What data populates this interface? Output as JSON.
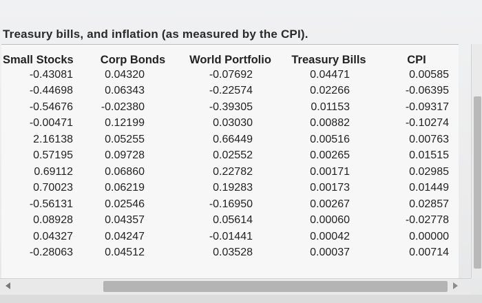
{
  "caption": "Treasury bills, and inflation (as measured by the CPI).",
  "table": {
    "headers": [
      "Small Stocks",
      "Corp Bonds",
      "World Portfolio",
      "Treasury Bills",
      "CPI"
    ],
    "rows": [
      [
        "-0.43081",
        "0.04320",
        "-0.07692",
        "0.04471",
        "0.00585"
      ],
      [
        "-0.44698",
        "0.06343",
        "-0.22574",
        "0.02266",
        "-0.06395"
      ],
      [
        "-0.54676",
        "-0.02380",
        "-0.39305",
        "0.01153",
        "-0.09317"
      ],
      [
        "-0.00471",
        "0.12199",
        "0.03030",
        "0.00882",
        "-0.10274"
      ],
      [
        "2.16138",
        "0.05255",
        "0.66449",
        "0.00516",
        "0.00763"
      ],
      [
        "0.57195",
        "0.09728",
        "0.02552",
        "0.00265",
        "0.01515"
      ],
      [
        "0.69112",
        "0.06860",
        "0.22782",
        "0.00171",
        "0.02985"
      ],
      [
        "0.70023",
        "0.06219",
        "0.19283",
        "0.00173",
        "0.01449"
      ],
      [
        "-0.56131",
        "0.02546",
        "-0.16950",
        "0.00267",
        "0.02857"
      ],
      [
        "0.08928",
        "0.04357",
        "0.05614",
        "0.00060",
        "-0.02778"
      ],
      [
        "0.04327",
        "0.04247",
        "-0.01441",
        "0.00042",
        "0.00000"
      ],
      [
        "-0.28063",
        "0.04512",
        "0.03528",
        "0.00037",
        "0.00714"
      ]
    ]
  },
  "icons": {
    "scroll_left": "triangle-left-icon",
    "scroll_right": "triangle-right-icon"
  }
}
